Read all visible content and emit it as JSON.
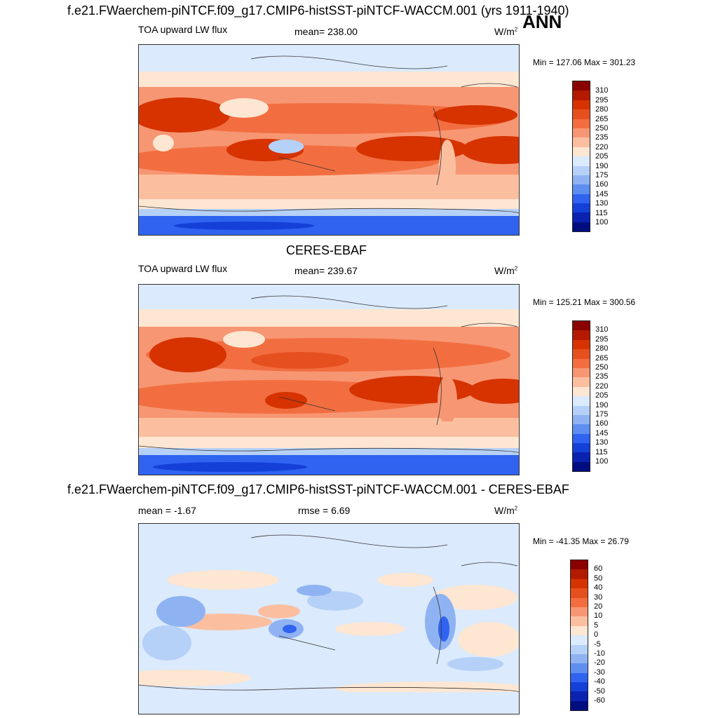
{
  "header": {
    "title": "f.e21.FWaerchem-piNTCF.f09_g17.CMIP6-histSST-piNTCF-WACCM.001 (yrs 1911-1940)",
    "season": "ANN"
  },
  "panels": [
    {
      "title": "",
      "variable": "TOA upward LW flux",
      "stat_label": "mean= 238.00",
      "units": "W/m",
      "units_exp": "2",
      "minmax": "Min = 127.06 Max = 301.23",
      "colorbar_labels": [
        "310",
        "295",
        "280",
        "265",
        "250",
        "235",
        "220",
        "205",
        "190",
        "175",
        "160",
        "145",
        "130",
        "115",
        "100"
      ]
    },
    {
      "title": "CERES-EBAF",
      "variable": "TOA upward LW flux",
      "stat_label": "mean= 239.67",
      "units": "W/m",
      "units_exp": "2",
      "minmax": "Min = 125.21 Max = 300.56",
      "colorbar_labels": [
        "310",
        "295",
        "280",
        "265",
        "250",
        "235",
        "220",
        "205",
        "190",
        "175",
        "160",
        "145",
        "130",
        "115",
        "100"
      ]
    },
    {
      "title": "f.e21.FWaerchem-piNTCF.f09_g17.CMIP6-histSST-piNTCF-WACCM.001 - CERES-EBAF",
      "stat_label": "mean =  -1.67",
      "rmse_label": "rmse =   6.69",
      "units": "W/m",
      "units_exp": "2",
      "minmax": "Min = -41.35 Max =  26.79",
      "colorbar_labels": [
        "60",
        "50",
        "40",
        "30",
        "20",
        "10",
        "5",
        "0",
        "-5",
        "-10",
        "-20",
        "-30",
        "-40",
        "-50",
        "-60"
      ]
    }
  ],
  "colors": {
    "flux_scale": [
      "#8b0000",
      "#b31a00",
      "#d63300",
      "#e6501f",
      "#f26e40",
      "#f79673",
      "#fbbfa0",
      "#fde6d2",
      "#dbeafc",
      "#b6d1f8",
      "#8fb3f2",
      "#5e8ef0",
      "#2f63f0",
      "#1440d8",
      "#0a22b0",
      "#000d80"
    ],
    "diff_scale": [
      "#8b0000",
      "#b31a00",
      "#d63300",
      "#e6501f",
      "#f26e40",
      "#f79673",
      "#fbbfa0",
      "#fde6d2",
      "#dbeafc",
      "#b6d1f8",
      "#8fb3f2",
      "#5e8ef0",
      "#2f63f0",
      "#1440d8",
      "#0a22b0",
      "#000d80"
    ]
  }
}
